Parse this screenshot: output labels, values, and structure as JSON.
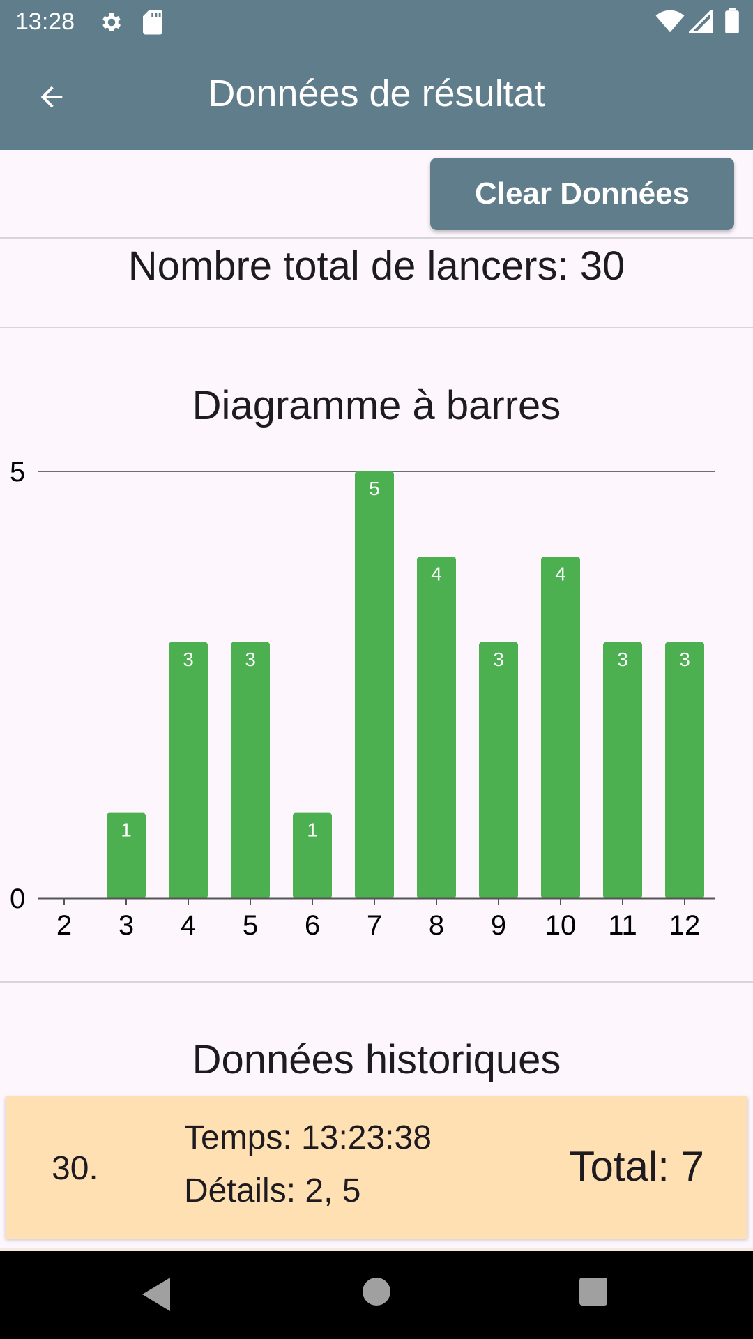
{
  "status_bar": {
    "time": "13:28"
  },
  "app_bar": {
    "title": "Données de résultat"
  },
  "actions": {
    "clear_label": "Clear Données"
  },
  "summary": {
    "total_throws_text": "Nombre total de lancers: 30"
  },
  "chart_section": {
    "title": "Diagramme à barres"
  },
  "chart_data": {
    "type": "bar",
    "categories": [
      "2",
      "3",
      "4",
      "5",
      "6",
      "7",
      "8",
      "9",
      "10",
      "11",
      "12"
    ],
    "values": [
      0,
      1,
      3,
      3,
      1,
      5,
      4,
      3,
      4,
      3,
      3
    ],
    "ylim": [
      0,
      5
    ],
    "yticks": [
      "0",
      "5"
    ],
    "bar_color": "#4caf50",
    "grid": true
  },
  "history_section": {
    "title": "Données historiques",
    "entries": [
      {
        "index": "30.",
        "time": "Temps: 13:23:38",
        "details": "Détails: 2, 5",
        "total": "Total: 7"
      }
    ]
  },
  "colors": {
    "primary": "#607d8b",
    "card": "#ffe0b2",
    "background": "#fdf7fd"
  }
}
